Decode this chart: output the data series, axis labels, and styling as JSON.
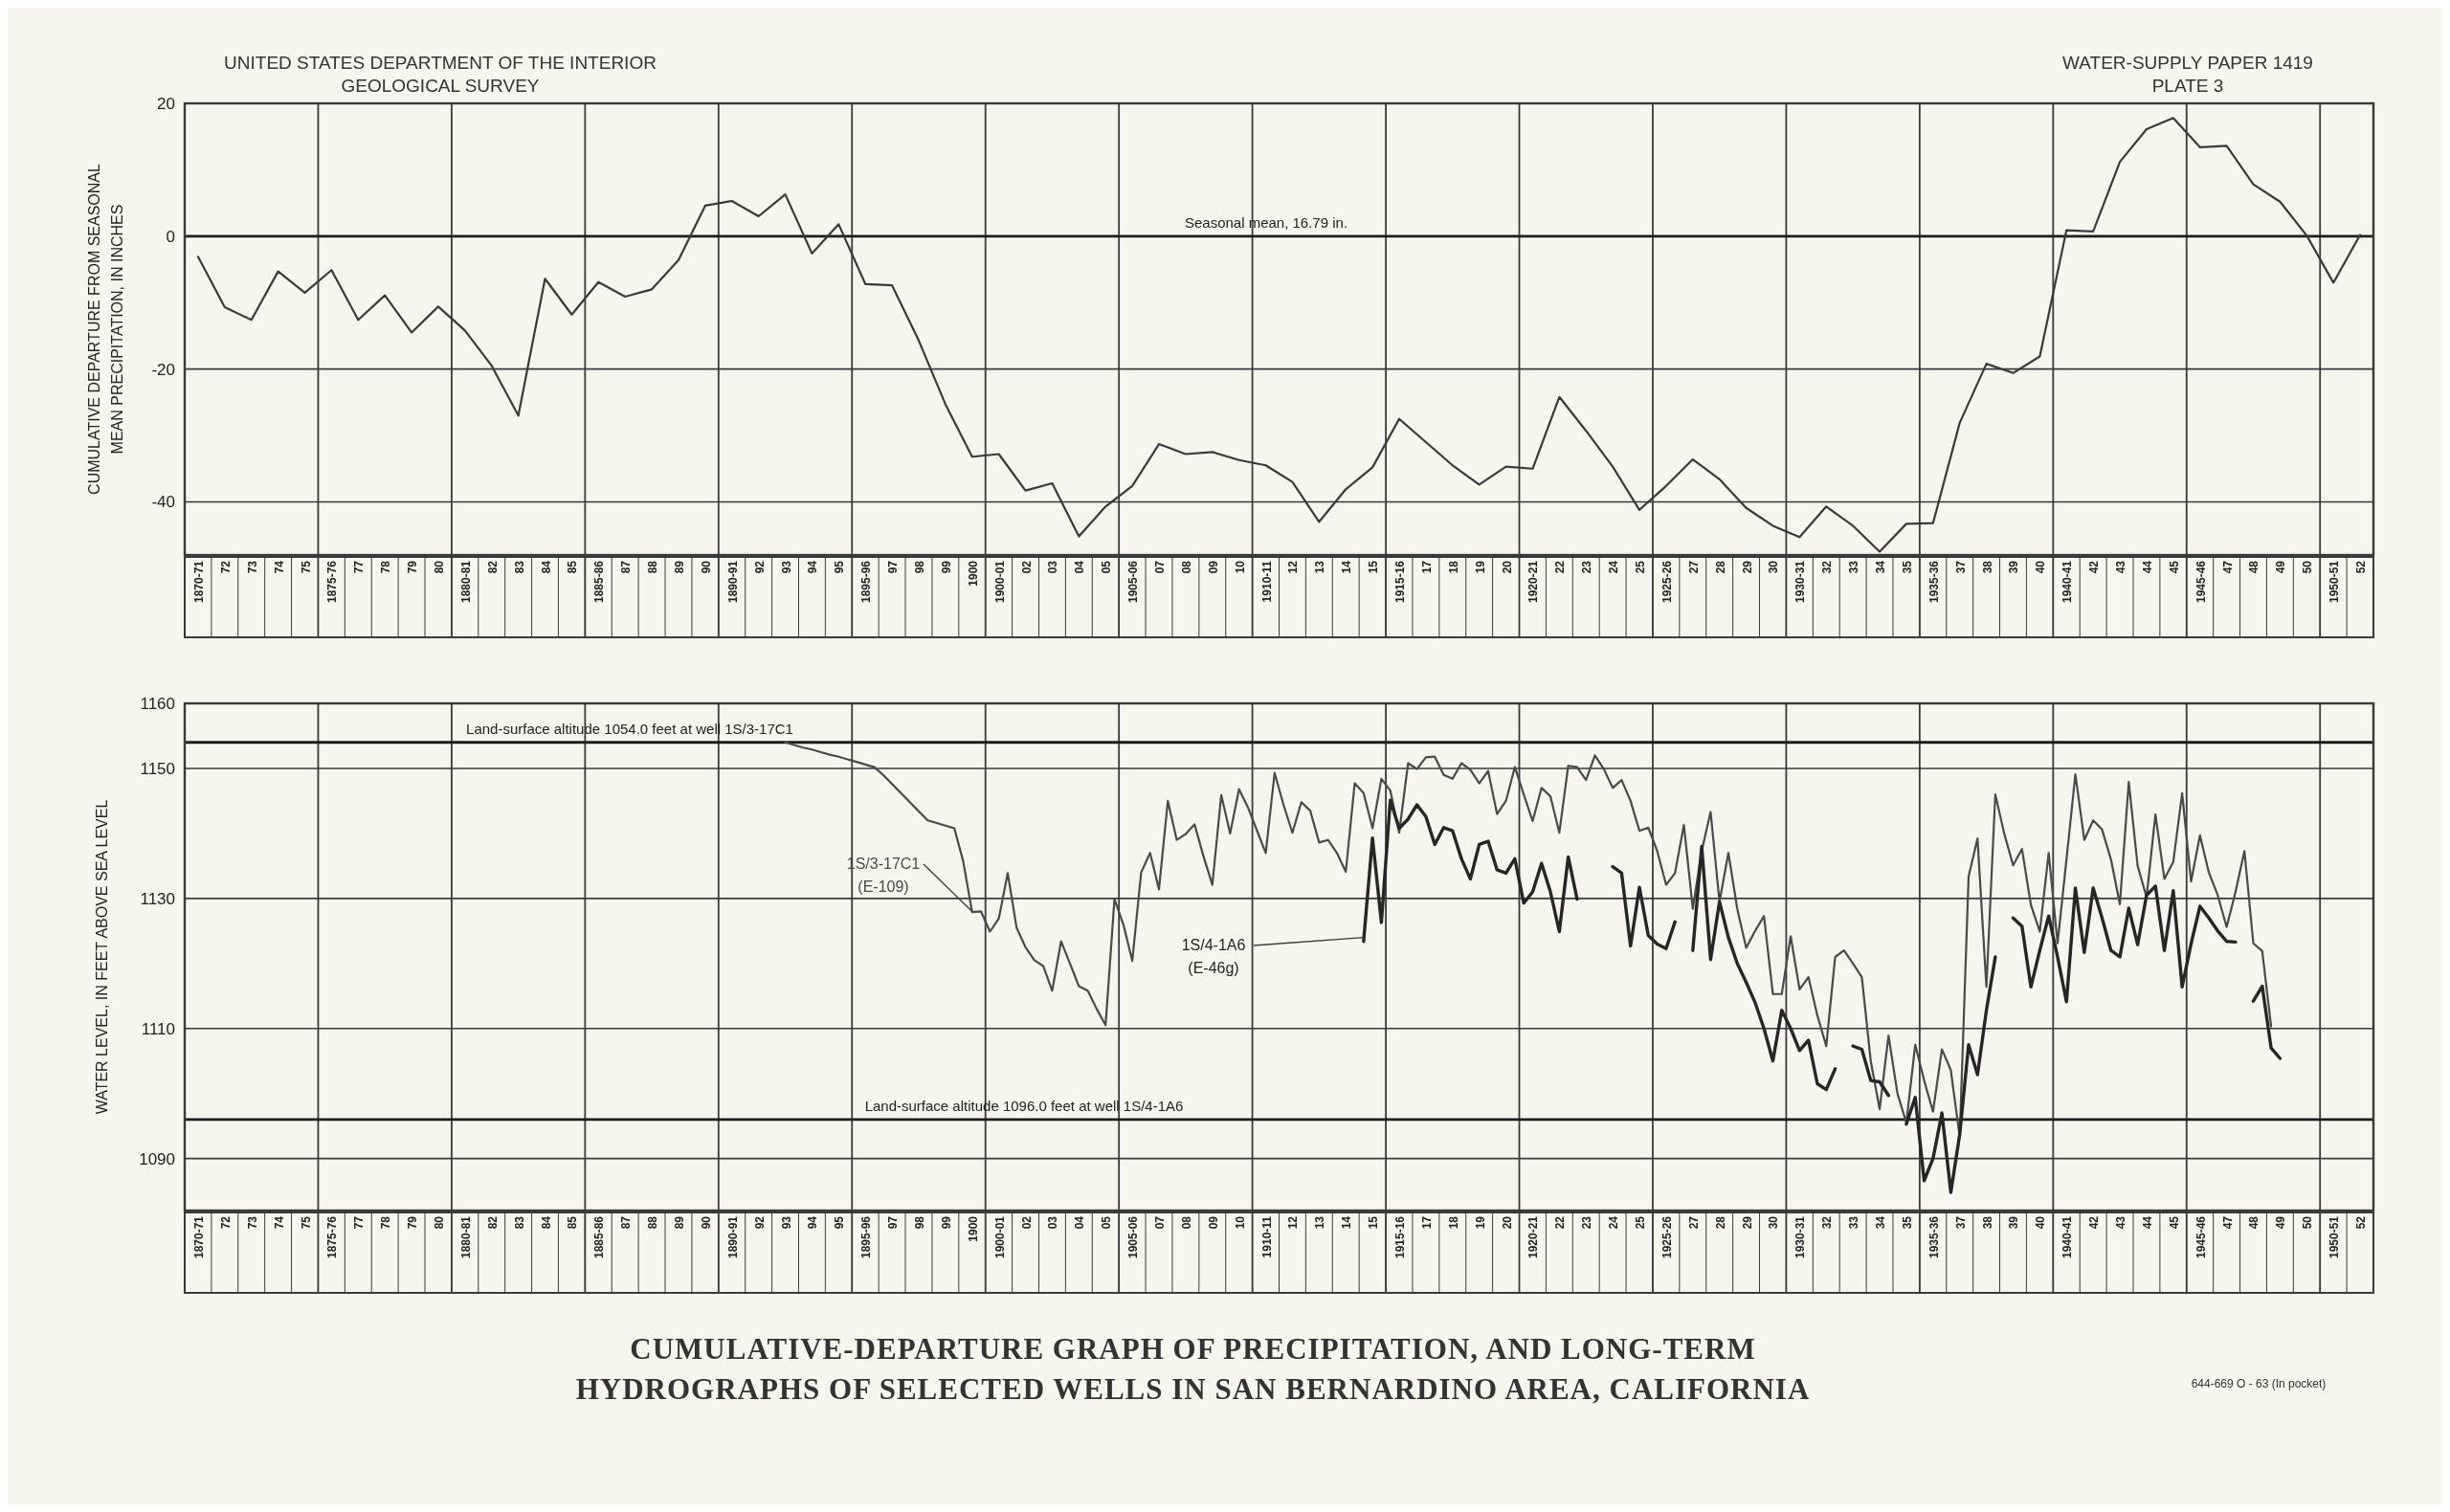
{
  "chart_data": [
    {
      "type": "line",
      "ylabel": "CUMULATIVE DEPARTURE FROM SEASONAL MEAN PRECIPITATION, IN INCHES",
      "annotations": [
        "UNITED STATES DEPARTMENT OF THE INTERIOR",
        "GEOLOGICAL SURVEY",
        "WATER-SUPPLY PAPER 1419",
        "PLATE 3"
      ],
      "ylim": [
        -48,
        20
      ],
      "yticks": [
        -40,
        -20,
        0,
        20
      ],
      "grid": true,
      "categories": [
        "1870-71",
        "72",
        "73",
        "74",
        "75",
        "1875-76",
        "77",
        "78",
        "79",
        "80",
        "1880-81",
        "82",
        "83",
        "84",
        "85",
        "1885-86",
        "87",
        "88",
        "89",
        "90",
        "1890-91",
        "92",
        "93",
        "94",
        "95",
        "1895-96",
        "97",
        "98",
        "99",
        "1900",
        "1900-01",
        "02",
        "03",
        "04",
        "05",
        "1905-06",
        "07",
        "08",
        "09",
        "10",
        "1910-11",
        "12",
        "13",
        "14",
        "15",
        "1915-16",
        "17",
        "18",
        "19",
        "20",
        "1920-21",
        "22",
        "23",
        "24",
        "25",
        "1925-26",
        "27",
        "28",
        "29",
        "30",
        "1930-31",
        "32",
        "33",
        "34",
        "35",
        "1935-36",
        "37",
        "38",
        "39",
        "40",
        "1940-41",
        "42",
        "43",
        "44",
        "45",
        "1945-46",
        "47",
        "48",
        "49",
        "50",
        "1950-51",
        "52"
      ],
      "ref_lines": [
        {
          "axis": "y",
          "value": 0,
          "label": "Seasonal mean, 16.79 in."
        }
      ],
      "series": [
        {
          "color": "#3a3a3a",
          "values": [
            -3.1,
            -10.7,
            -12.6,
            -5.3,
            -8.5,
            -5.1,
            -12.6,
            -8.9,
            -14.5,
            -10.6,
            -14.2,
            -19.5,
            -27,
            -6.4,
            -11.8,
            -6.9,
            -9.1,
            -8,
            -3.6,
            4.6,
            5.3,
            3,
            6.3,
            -2.6,
            1.8,
            -7.2,
            -7.4,
            -15.7,
            -25.3,
            -33.2,
            -32.8,
            -38.3,
            -37.2,
            -45.2,
            -40.7,
            -37.6,
            -31.3,
            -32.8,
            -32.5,
            -33.7,
            -34.5,
            -37,
            -43,
            -38.1,
            -34.8,
            -27.5,
            -31,
            -34.5,
            -37.4,
            -34.7,
            -35,
            -24.2,
            -29.3,
            -34.7,
            -41.2,
            -37.6,
            -33.6,
            -36.6,
            -40.9,
            -43.6,
            -45.3,
            -40.7,
            -43.6,
            -47.5,
            -43.3,
            -43.2,
            -28.1,
            -19.2,
            -20.6,
            -18.1,
            0.9,
            0.7,
            11.2,
            16.1,
            17.8,
            13.4,
            13.6,
            7.8,
            5.2,
            0.1,
            -7,
            0.2
          ]
        }
      ]
    },
    {
      "type": "line",
      "title": "CUMULATIVE-DEPARTURE GRAPH OF PRECIPITATION, AND LONG-TERM HYDROGRAPHS OF SELECTED WELLS IN SAN BERNARDINO AREA, CALIFORNIA",
      "ylabel": "WATER LEVEL, IN FEET ABOVE SEA LEVEL",
      "annotations": [
        "644-669 O - 63 (In pocket)"
      ],
      "ylim": [
        1082,
        1160
      ],
      "yticks": [
        1090,
        1110,
        1130,
        1150,
        1160
      ],
      "grid": true,
      "categories": [
        null,
        "1870-71",
        null,
        null,
        "72",
        null,
        null,
        "73",
        null,
        null,
        "74",
        null,
        null,
        "75",
        null,
        null,
        "1875-76",
        null,
        null,
        "77",
        null,
        null,
        "78",
        null,
        null,
        "79",
        null,
        null,
        "80",
        null,
        null,
        "1880-81",
        null,
        null,
        "82",
        null,
        null,
        "83",
        null,
        null,
        "84",
        null,
        null,
        "85",
        null,
        null,
        "1885-86",
        null,
        null,
        "87",
        null,
        null,
        "88",
        null,
        null,
        "89",
        null,
        null,
        "90",
        null,
        null,
        "1890-91",
        null,
        null,
        "92",
        null,
        null,
        "93",
        null,
        null,
        "94",
        null,
        null,
        "95",
        null,
        null,
        "1895-96",
        null,
        null,
        "97",
        null,
        null,
        "98",
        null,
        null,
        "99",
        null,
        null,
        "1900",
        null,
        null,
        "1900-01",
        null,
        null,
        "02",
        null,
        null,
        "03",
        null,
        null,
        "04",
        null,
        null,
        "05",
        null,
        null,
        "1905-06",
        null,
        null,
        "07",
        null,
        null,
        "08",
        null,
        null,
        "09",
        null,
        null,
        "10",
        null,
        null,
        "1910-11",
        null,
        null,
        "12",
        null,
        null,
        "13",
        null,
        null,
        "14",
        null,
        null,
        "15",
        null,
        null,
        "1915-16",
        null,
        null,
        "17",
        null,
        null,
        "18",
        null,
        null,
        "19",
        null,
        null,
        "20",
        null,
        null,
        "1920-21",
        null,
        null,
        "22",
        null,
        null,
        "23",
        null,
        null,
        "24",
        null,
        null,
        "25",
        null,
        null,
        "1925-26",
        null,
        null,
        "27",
        null,
        null,
        "28",
        null,
        null,
        "29",
        null,
        null,
        "30",
        null,
        null,
        "1930-31",
        null,
        null,
        "32",
        null,
        null,
        "33",
        null,
        null,
        "34",
        null,
        null,
        "35",
        null,
        null,
        "1935-36",
        null,
        null,
        "37",
        null,
        null,
        "38",
        null,
        null,
        "39",
        null,
        null,
        "40",
        null,
        null,
        "1940-41",
        null,
        null,
        "42",
        null,
        null,
        "43",
        null,
        null,
        "44",
        null,
        null,
        "45",
        null,
        null,
        "1945-46",
        null,
        null,
        "47",
        null,
        null,
        "48",
        null,
        null,
        "49",
        null,
        null,
        "50",
        null,
        null,
        "1950-51",
        null,
        null,
        "52",
        null
      ],
      "ref_lines": [
        {
          "axis": "y",
          "value": 1154,
          "label": "Land-surface altitude 1054.0 feet at well 1S/3-17C1"
        },
        {
          "axis": "y",
          "value": 1096,
          "label": "Land-surface altitude 1096.0 feet at well 1S/4-1A6"
        }
      ],
      "series": [
        {
          "name": "1S/3-17C1 (E-109)",
          "color": "#4a4a4a",
          "values": [
            null,
            null,
            null,
            null,
            null,
            null,
            null,
            null,
            null,
            null,
            null,
            null,
            null,
            null,
            null,
            null,
            null,
            null,
            null,
            null,
            null,
            null,
            null,
            null,
            null,
            null,
            null,
            null,
            null,
            null,
            null,
            null,
            null,
            null,
            null,
            null,
            null,
            null,
            null,
            null,
            null,
            null,
            null,
            null,
            null,
            null,
            null,
            null,
            null,
            null,
            null,
            null,
            null,
            null,
            null,
            null,
            null,
            null,
            null,
            null,
            null,
            null,
            null,
            null,
            null,
            null,
            null,
            1154,
            1153.6,
            1153.2,
            1152.9,
            1152.5,
            1152.1,
            1151.8,
            1151.4,
            1151.0,
            1150.6,
            1150.2,
            1149.0,
            1147.6,
            1146.2,
            1144.8,
            1143.4,
            1142.0,
            1141.6,
            1141.2,
            1140.8,
            1135.7,
            1127.9,
            1128.0,
            1124.9,
            1126.9,
            1133.9,
            1125.5,
            1122.5,
            1120.5,
            1119.6,
            1115.8,
            1123.4,
            1120.0,
            1116.5,
            1115.8,
            1113.0,
            1110.5,
            1129.9,
            1126.0,
            1120.4,
            1134.0,
            1137.0,
            1131.4,
            1145.0,
            1139.0,
            1139.9,
            1141.4,
            1136.5,
            1132.1,
            1145.9,
            1140.0,
            1146.8,
            1144.0,
            1140.5,
            1137.0,
            1149.3,
            1144.4,
            1140.1,
            1144.8,
            1143.5,
            1138.6,
            1139.0,
            1137.0,
            1134.1,
            1147.7,
            1146.2,
            1140.8,
            1148.4,
            1146.6,
            1140.1,
            1150.8,
            1149.9,
            1151.7,
            1151.8,
            1149.0,
            1148.4,
            1150.8,
            1149.8,
            1147.7,
            1149.6,
            1143.0,
            1145.0,
            1150.2,
            1146.0,
            1141.9,
            1147.0,
            1145.7,
            1140.1,
            1150.4,
            1150.2,
            1148.2,
            1152.0,
            1149.9,
            1147.0,
            1148.2,
            1145.0,
            1140.4,
            1140.9,
            1137.3,
            1132.1,
            1133.9,
            1141.3,
            1128.4,
            1137.3,
            1143.3,
            1129.5,
            1137.0,
            1128.4,
            1122.4,
            1125.0,
            1127.3,
            1115.3,
            1115.3,
            1124.2,
            1116.0,
            1117.9,
            1112.0,
            1107.3,
            1121.0,
            1122.0,
            1120.0,
            1117.9,
            1105.0,
            1097.6,
            1108.9,
            1100.0,
            1095.5,
            1107.5,
            1102.0,
            1097.2,
            1106.8,
            1103.6,
            1093.3,
            1133.4,
            1139.2,
            1116.4,
            1146.0,
            1140.0,
            1135.1,
            1137.6,
            1129.0,
            1124.9,
            1137.0,
            1123.1,
            1136.0,
            1149.1,
            1139.0,
            1142.0,
            1140.6,
            1136.0,
            1129.1,
            1147.9,
            1135.0,
            1130.2,
            1142.9,
            1133.0,
            1135.6,
            1146.2,
            1132.6,
            1139.7,
            1134.0,
            1130.5,
            1125.6,
            1131.0,
            1137.3,
            1123.1,
            1121.9,
            1110.3,
            null,
            null,
            null,
            null,
            null,
            null,
            null,
            null,
            null,
            null,
            null
          ]
        },
        {
          "name": "1S/4-1A6 (E-46g)",
          "color": "#262626",
          "values": [
            null,
            null,
            null,
            null,
            null,
            null,
            null,
            null,
            null,
            null,
            null,
            null,
            null,
            null,
            null,
            null,
            null,
            null,
            null,
            null,
            null,
            null,
            null,
            null,
            null,
            null,
            null,
            null,
            null,
            null,
            null,
            null,
            null,
            null,
            null,
            null,
            null,
            null,
            null,
            null,
            null,
            null,
            null,
            null,
            null,
            null,
            null,
            null,
            null,
            null,
            null,
            null,
            null,
            null,
            null,
            null,
            null,
            null,
            null,
            null,
            null,
            null,
            null,
            null,
            null,
            null,
            null,
            null,
            null,
            null,
            null,
            null,
            null,
            null,
            null,
            null,
            null,
            null,
            null,
            null,
            null,
            null,
            null,
            null,
            null,
            null,
            null,
            null,
            null,
            null,
            null,
            null,
            null,
            null,
            null,
            null,
            null,
            null,
            null,
            null,
            null,
            null,
            null,
            null,
            null,
            null,
            null,
            null,
            null,
            null,
            null,
            null,
            null,
            null,
            null,
            null,
            null,
            null,
            null,
            null,
            null,
            null,
            null,
            null,
            null,
            null,
            null,
            null,
            null,
            null,
            null,
            null,
            1123.4,
            1139.3,
            1126.3,
            1145.1,
            1140.8,
            1142.2,
            1144.4,
            1142.6,
            1138.3,
            1140.9,
            1140.4,
            1136.1,
            1133.0,
            1138.3,
            1138.8,
            1134.4,
            1133.9,
            1136.1,
            1129.3,
            1131.0,
            1135.4,
            1131.0,
            1124.9,
            1136.4,
            1129.9,
            null,
            null,
            null,
            1134.9,
            1133.9,
            1122.7,
            1131.7,
            1124.3,
            1123.0,
            1122.3,
            1126.4,
            null,
            1122.0,
            1138.0,
            1120.6,
            1129.5,
            1124.0,
            1120.0,
            1117.1,
            1114.0,
            1110.0,
            1105.0,
            1112.8,
            1110.0,
            1106.6,
            1108.2,
            1101.5,
            1100.6,
            1103.8,
            null,
            1107.3,
            1106.8,
            1102.0,
            1101.8,
            1099.7,
            null,
            1095.3,
            1099.4,
            1086.6,
            1090.0,
            1097.0,
            1084.8,
            1093.7,
            1107.5,
            1102.9,
            1112.8,
            1121.0,
            null,
            1127.0,
            1125.7,
            1116.4,
            1122.0,
            1127.3,
            1121.0,
            1114.1,
            1131.6,
            1121.7,
            1131.6,
            1127.0,
            1122.0,
            1121.0,
            1128.5,
            1122.9,
            1130.5,
            1131.9,
            1122.0,
            1131.2,
            1116.4,
            1123.0,
            1128.8,
            1127.0,
            1125.0,
            1123.4,
            1123.3,
            null,
            1114.2,
            1116.5,
            1107.0,
            1105.4,
            null,
            null,
            null,
            null,
            null,
            null,
            null,
            null,
            null,
            null
          ]
        }
      ]
    }
  ]
}
